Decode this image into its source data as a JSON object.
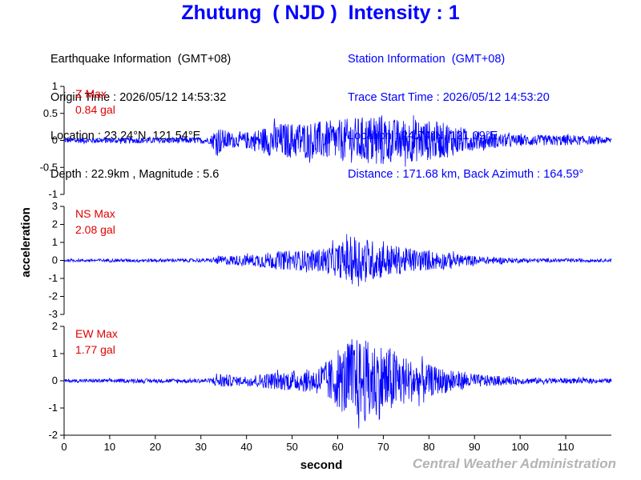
{
  "title": "Zhutung  ( NJD )  Intensity : 1",
  "earthquake": {
    "heading": "Earthquake Information  (GMT+08)",
    "origin_time": "Origin Time : 2026/05/12 14:53:32",
    "location": "Location : 23.24°N, 121.54°E",
    "depth_magnitude": "Depth : 22.9km , Magnitude : 5.6"
  },
  "station": {
    "heading": "Station Information  (GMT+08)",
    "trace_start": "Trace Start Time : 2026/05/12 14:53:20",
    "location": "Location : 24.74°N, 121.09°E",
    "distance": "Distance : 171.68 km, Back Azimuth : 164.59°"
  },
  "credit": "Central Weather Administration",
  "colors": {
    "title": "#0000ff",
    "trace": "#0000ff",
    "max_label": "#e00000",
    "credit": "#b4b4b4"
  },
  "chart_data": {
    "type": "line",
    "xlabel": "second",
    "ylabel": "acceleration",
    "xlim": [
      0,
      120
    ],
    "xticks": [
      0,
      10,
      20,
      30,
      40,
      50,
      60,
      70,
      80,
      90,
      100,
      110
    ],
    "xtick_labels": [
      "0",
      "10",
      "20",
      "30",
      "40",
      "50",
      "60",
      "70",
      "80",
      "90",
      "100",
      "110"
    ],
    "grid": false,
    "panels": [
      {
        "component": "Z",
        "max_label": "Z Max",
        "max_value": "0.84 gal",
        "ylim": [
          -1,
          1
        ],
        "yticks": [
          1,
          0.5,
          0,
          -0.5,
          -1
        ],
        "ytick_labels": [
          "1",
          "0.5",
          "0",
          "-0.5",
          "-1"
        ],
        "envelope": [
          [
            0,
            0.05
          ],
          [
            32,
            0.06
          ],
          [
            33.5,
            0.3
          ],
          [
            35,
            0.2
          ],
          [
            38,
            0.12
          ],
          [
            42,
            0.2
          ],
          [
            46,
            0.32
          ],
          [
            55,
            0.35
          ],
          [
            60,
            0.38
          ],
          [
            66,
            0.45
          ],
          [
            70,
            0.5
          ],
          [
            72,
            0.4
          ],
          [
            78,
            0.4
          ],
          [
            84,
            0.32
          ],
          [
            90,
            0.18
          ],
          [
            100,
            0.1
          ],
          [
            110,
            0.1
          ],
          [
            120,
            0.06
          ]
        ]
      },
      {
        "component": "NS",
        "max_label": "NS Max",
        "max_value": "2.08 gal",
        "ylim": [
          -3,
          3
        ],
        "yticks": [
          3,
          2,
          1,
          0,
          -1,
          -2,
          -3
        ],
        "ytick_labels": [
          "3",
          "2",
          "1",
          "0",
          "-1",
          "-2",
          "-3"
        ],
        "envelope": [
          [
            0,
            0.08
          ],
          [
            32,
            0.1
          ],
          [
            34,
            0.25
          ],
          [
            40,
            0.3
          ],
          [
            46,
            0.5
          ],
          [
            55,
            0.6
          ],
          [
            60,
            0.9
          ],
          [
            64,
            1.5
          ],
          [
            68,
            1.1
          ],
          [
            75,
            0.7
          ],
          [
            82,
            0.5
          ],
          [
            90,
            0.25
          ],
          [
            100,
            0.12
          ],
          [
            120,
            0.08
          ]
        ]
      },
      {
        "component": "EW",
        "max_label": "EW Max",
        "max_value": "1.77 gal",
        "ylim": [
          -2,
          2
        ],
        "yticks": [
          2,
          1,
          0,
          -1,
          -2
        ],
        "ytick_labels": [
          "2",
          "1",
          "0",
          "-1",
          "-2"
        ],
        "envelope": [
          [
            0,
            0.06
          ],
          [
            32,
            0.08
          ],
          [
            34,
            0.3
          ],
          [
            38,
            0.15
          ],
          [
            45,
            0.3
          ],
          [
            55,
            0.45
          ],
          [
            60,
            1.0
          ],
          [
            63,
            1.6
          ],
          [
            70,
            1.4
          ],
          [
            76,
            0.8
          ],
          [
            82,
            0.5
          ],
          [
            90,
            0.25
          ],
          [
            100,
            0.12
          ],
          [
            120,
            0.08
          ]
        ]
      }
    ]
  }
}
